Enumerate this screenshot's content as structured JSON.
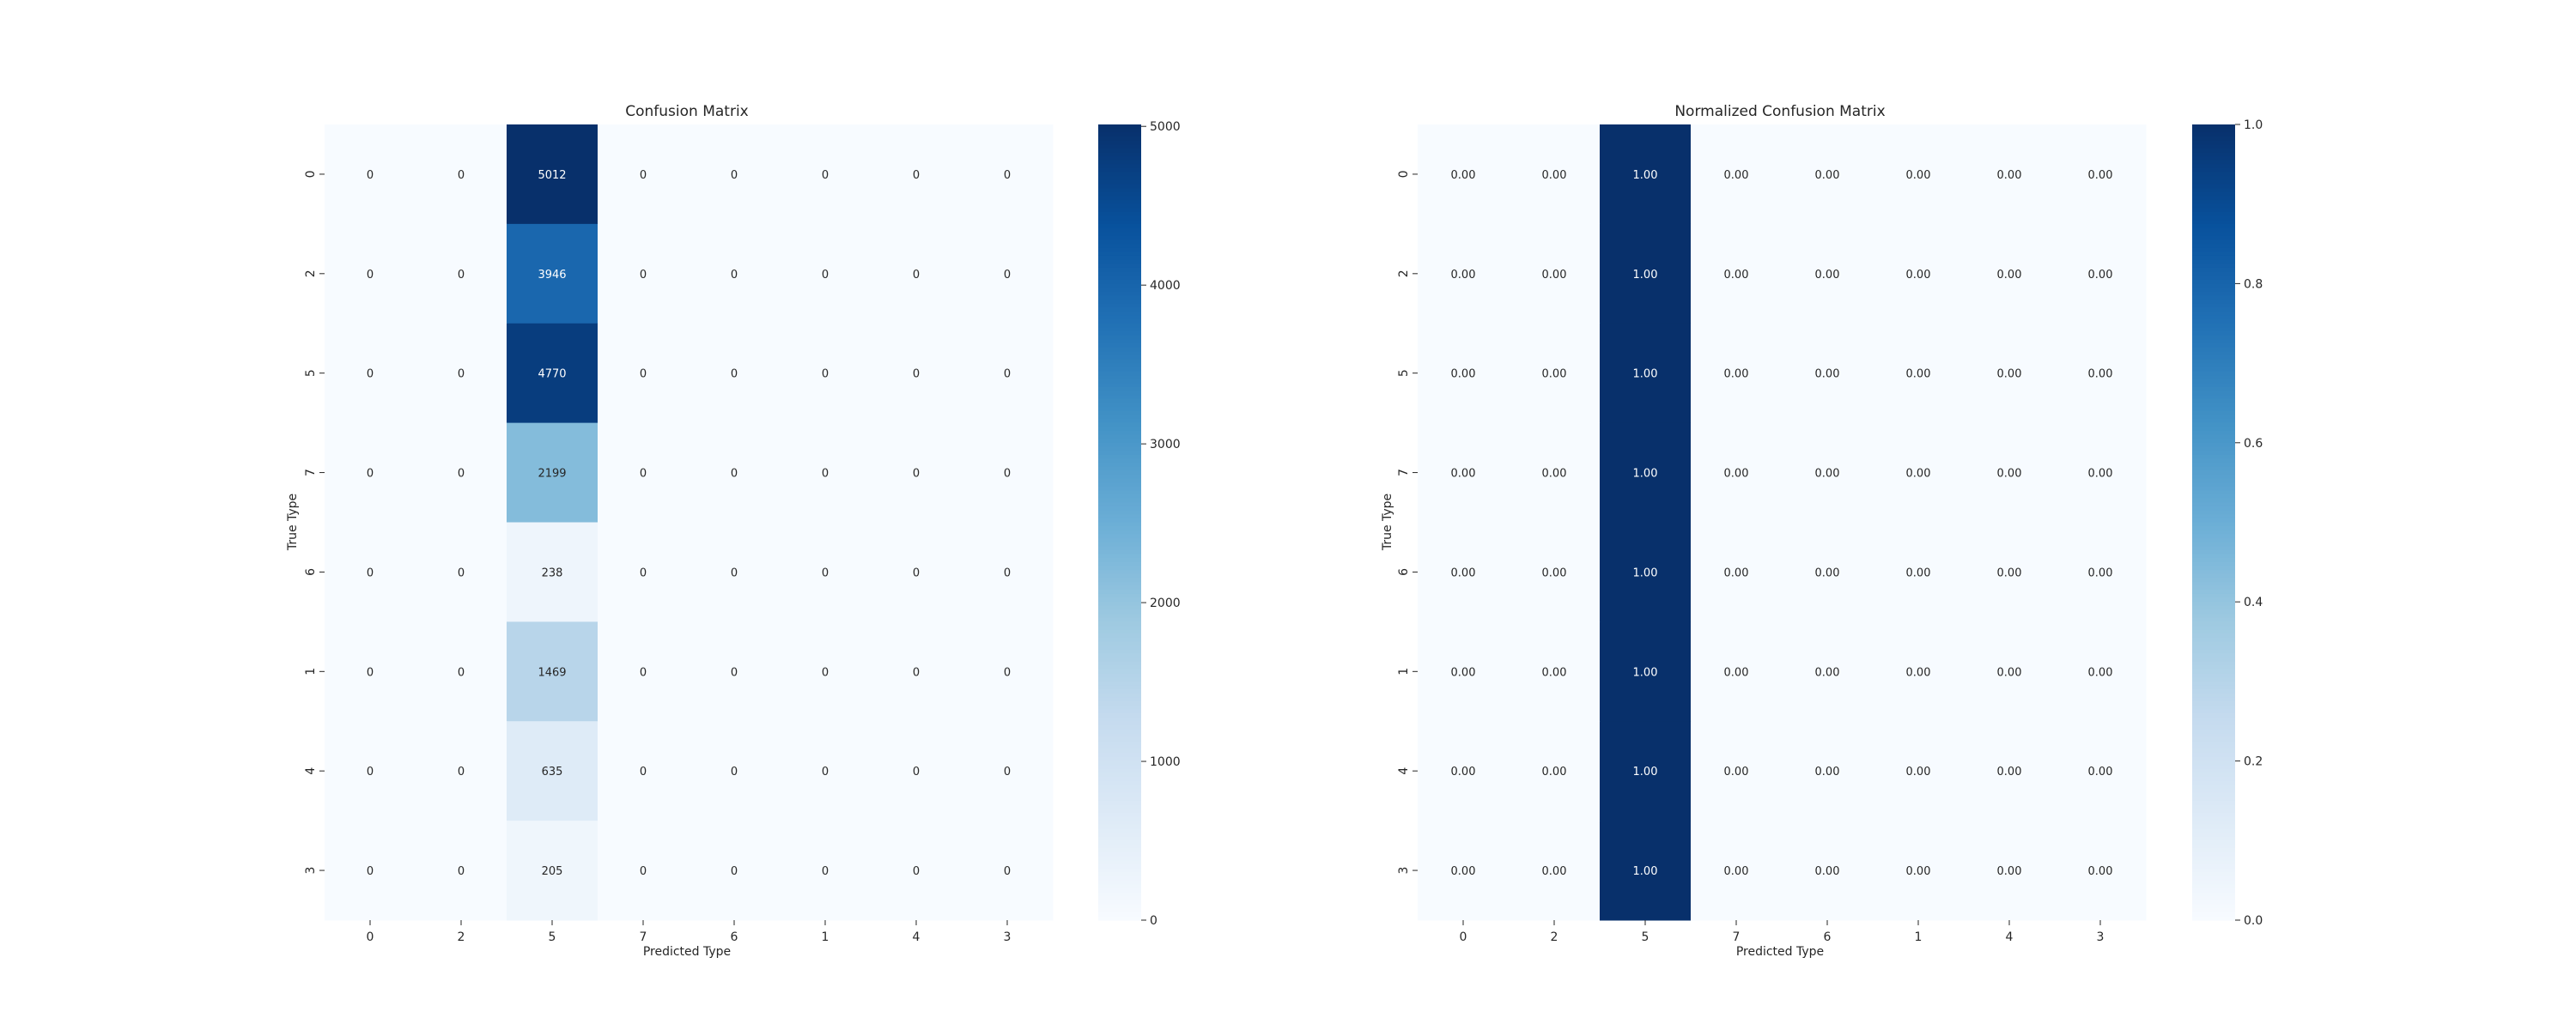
{
  "chart_data": [
    {
      "type": "heatmap",
      "title": "Confusion Matrix",
      "xlabel": "Predicted Type",
      "ylabel": "True Type",
      "x_categories": [
        "0",
        "2",
        "5",
        "7",
        "6",
        "1",
        "4",
        "3"
      ],
      "y_categories": [
        "0",
        "2",
        "5",
        "7",
        "6",
        "1",
        "4",
        "3"
      ],
      "values": [
        [
          0,
          0,
          5012,
          0,
          0,
          0,
          0,
          0
        ],
        [
          0,
          0,
          3946,
          0,
          0,
          0,
          0,
          0
        ],
        [
          0,
          0,
          4770,
          0,
          0,
          0,
          0,
          0
        ],
        [
          0,
          0,
          2199,
          0,
          0,
          0,
          0,
          0
        ],
        [
          0,
          0,
          238,
          0,
          0,
          0,
          0,
          0
        ],
        [
          0,
          0,
          1469,
          0,
          0,
          0,
          0,
          0
        ],
        [
          0,
          0,
          635,
          0,
          0,
          0,
          0,
          0
        ],
        [
          0,
          0,
          205,
          0,
          0,
          0,
          0,
          0
        ]
      ],
      "colorscale": "Blues",
      "colorbar_range": [
        0,
        5012
      ],
      "colorbar_ticks": [
        0,
        1000,
        2000,
        3000,
        4000,
        5000
      ],
      "value_format": "int"
    },
    {
      "type": "heatmap",
      "title": "Normalized Confusion Matrix",
      "xlabel": "Predicted Type",
      "ylabel": "True Type",
      "x_categories": [
        "0",
        "2",
        "5",
        "7",
        "6",
        "1",
        "4",
        "3"
      ],
      "y_categories": [
        "0",
        "2",
        "5",
        "7",
        "6",
        "1",
        "4",
        "3"
      ],
      "values": [
        [
          0,
          0,
          1,
          0,
          0,
          0,
          0,
          0
        ],
        [
          0,
          0,
          1,
          0,
          0,
          0,
          0,
          0
        ],
        [
          0,
          0,
          1,
          0,
          0,
          0,
          0,
          0
        ],
        [
          0,
          0,
          1,
          0,
          0,
          0,
          0,
          0
        ],
        [
          0,
          0,
          1,
          0,
          0,
          0,
          0,
          0
        ],
        [
          0,
          0,
          1,
          0,
          0,
          0,
          0,
          0
        ],
        [
          0,
          0,
          1,
          0,
          0,
          0,
          0,
          0
        ],
        [
          0,
          0,
          1,
          0,
          0,
          0,
          0,
          0
        ]
      ],
      "colorscale": "Blues",
      "colorbar_range": [
        0,
        1
      ],
      "colorbar_ticks": [
        0,
        0.2,
        0.4,
        0.6,
        0.8,
        1.0
      ],
      "value_format": "fixed2"
    }
  ],
  "colors": {
    "blues": [
      "#f7fbff",
      "#deebf7",
      "#c6dbef",
      "#9ecae1",
      "#6baed6",
      "#4292c6",
      "#2171b5",
      "#08519c",
      "#08306b"
    ],
    "text_dark": "#262626",
    "text_light": "#ffffff"
  }
}
